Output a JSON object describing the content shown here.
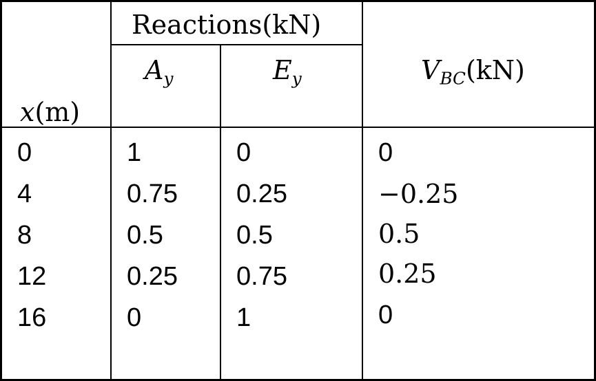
{
  "header": {
    "reactions_group": "Reactions(kN)",
    "x_var": "x",
    "x_unit": "(m)",
    "a_var": "A",
    "a_sub": "y",
    "e_var": "E",
    "e_sub": "y",
    "v_var": "V",
    "v_sub": "BC",
    "v_unit": "(kN)"
  },
  "rows": [
    {
      "x": "0",
      "ay": "1",
      "ey": "0",
      "vbc": "0"
    },
    {
      "x": "4",
      "ay": "0.75",
      "ey": "0.25",
      "vbc": "−0.25"
    },
    {
      "x": "8",
      "ay": "0.5",
      "ey": "0.5",
      "vbc": "0.5"
    },
    {
      "x": "12",
      "ay": "0.25",
      "ey": "0.75",
      "vbc": "0.25"
    },
    {
      "x": "16",
      "ay": "0",
      "ey": "1",
      "vbc": "0"
    }
  ]
}
